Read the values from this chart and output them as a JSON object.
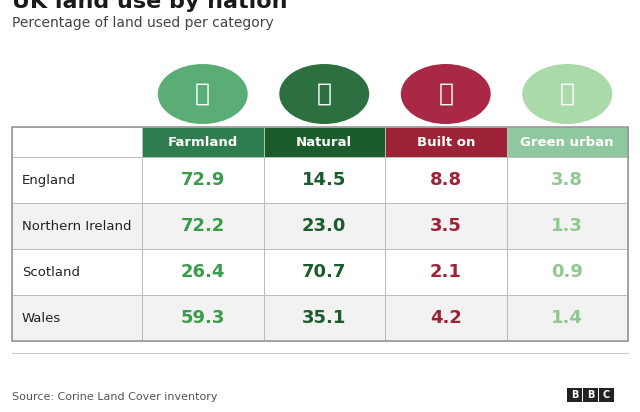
{
  "title": "UK land use by nation",
  "subtitle": "Percentage of land used per category",
  "source": "Source: Corine Land Cover inventory",
  "columns": [
    "Farmland",
    "Natural",
    "Built on",
    "Green urban"
  ],
  "rows": [
    "England",
    "Northern Ireland",
    "Scotland",
    "Wales"
  ],
  "values": [
    [
      72.9,
      14.5,
      8.8,
      3.8
    ],
    [
      72.2,
      23.0,
      3.5,
      1.3
    ],
    [
      26.4,
      70.7,
      2.1,
      0.9
    ],
    [
      59.3,
      35.1,
      4.2,
      1.4
    ]
  ],
  "header_bg_colors": [
    "#2e7d4f",
    "#1a5c2a",
    "#9b2335",
    "#8fc89f"
  ],
  "header_text_color": "#ffffff",
  "value_colors": [
    "#3a9c4a",
    "#1a5c2a",
    "#9b2335",
    "#90c890"
  ],
  "icon_bg_colors": [
    "#5aad75",
    "#2d7040",
    "#a82845",
    "#aad9aa"
  ],
  "row_bg_colors": [
    "#ffffff",
    "#f2f2f2",
    "#ffffff",
    "#f2f2f2"
  ],
  "title_fontsize": 16,
  "subtitle_fontsize": 10,
  "header_fontsize": 9.5,
  "value_fontsize": 13,
  "row_label_fontsize": 9.5,
  "bg_color": "#ffffff",
  "border_color": "#bbbbbb",
  "title_color": "#1a1a1a",
  "subtitle_color": "#444444",
  "source_color": "#555555",
  "row_label_color": "#222222"
}
